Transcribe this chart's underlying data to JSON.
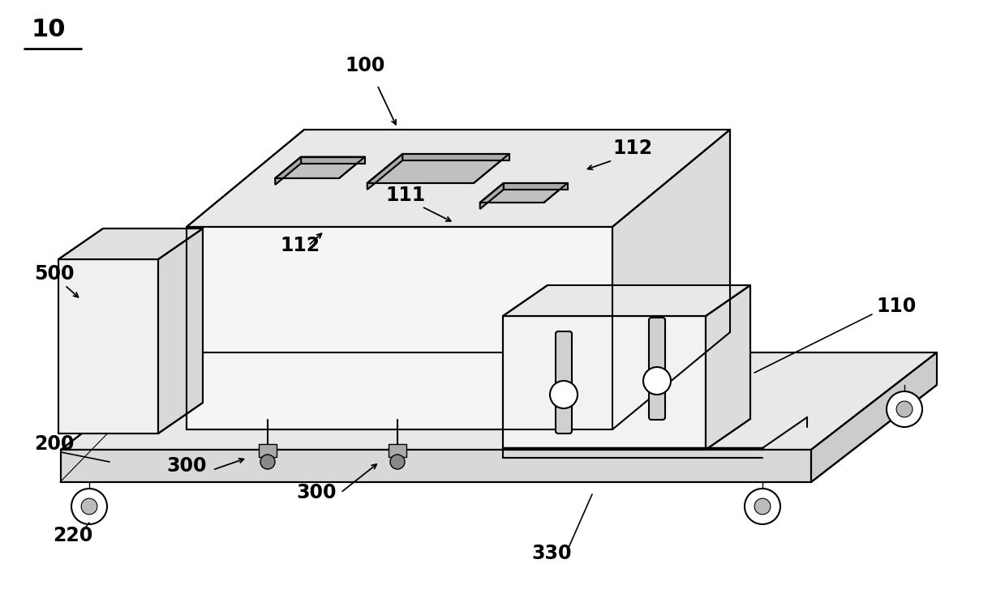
{
  "background_color": "#ffffff",
  "line_color": "#000000",
  "label_color": "#000000",
  "label_fontsize": 17,
  "figsize": [
    12.39,
    7.59
  ],
  "dpi": 100,
  "top_face_color": "#e8e8e8",
  "front_face_color": "#f5f5f5",
  "right_face_color": "#dcdcdc",
  "platform_top_color": "#e8e8e8",
  "platform_front_color": "#d8d8d8",
  "platform_right_color": "#cccccc",
  "box500_front_color": "#f0f0f0",
  "box500_top_color": "#e0e0e0",
  "box500_right_color": "#d8d8d8",
  "panel_front_color": "#f2f2f2",
  "panel_right_color": "#dcdcdc",
  "panel_top_color": "#e8e8e8",
  "slot_color": "#c0c0c0",
  "foot_color": "#999999"
}
